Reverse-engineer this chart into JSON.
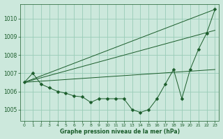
{
  "bg_color": "#cce8dc",
  "grid_color": "#99ccb8",
  "line_color": "#1a5c2a",
  "xlabel": "Graphe pression niveau de la mer (hPa)",
  "xlim": [
    -0.5,
    23.5
  ],
  "ylim": [
    1004.4,
    1010.8
  ],
  "yticks": [
    1005,
    1006,
    1007,
    1008,
    1009,
    1010
  ],
  "xticks": [
    0,
    1,
    2,
    3,
    4,
    5,
    6,
    7,
    8,
    9,
    10,
    11,
    12,
    13,
    14,
    15,
    16,
    17,
    18,
    19,
    20,
    21,
    22,
    23
  ],
  "series": [
    {
      "x": [
        0,
        1,
        2,
        3,
        4,
        5,
        6,
        7,
        8,
        9,
        10,
        11,
        12,
        13,
        14,
        15,
        16,
        17,
        18,
        19,
        20,
        21,
        22,
        23
      ],
      "y": [
        1006.5,
        1007.0,
        1006.4,
        1006.2,
        1006.0,
        1005.9,
        1005.75,
        1005.7,
        1005.4,
        1005.6,
        1005.6,
        1005.6,
        1005.6,
        1005.0,
        1004.85,
        1005.0,
        1005.6,
        1006.4,
        1007.2,
        1005.6,
        1007.2,
        1008.3,
        1009.2,
        1010.5
      ],
      "has_marker": true,
      "markersize": 2.5
    },
    {
      "x": [
        0,
        23
      ],
      "y": [
        1006.5,
        1010.5
      ],
      "has_marker": false
    },
    {
      "x": [
        0,
        23
      ],
      "y": [
        1006.5,
        1009.35
      ],
      "has_marker": false
    },
    {
      "x": [
        0,
        23
      ],
      "y": [
        1006.5,
        1007.2
      ],
      "has_marker": false
    }
  ]
}
